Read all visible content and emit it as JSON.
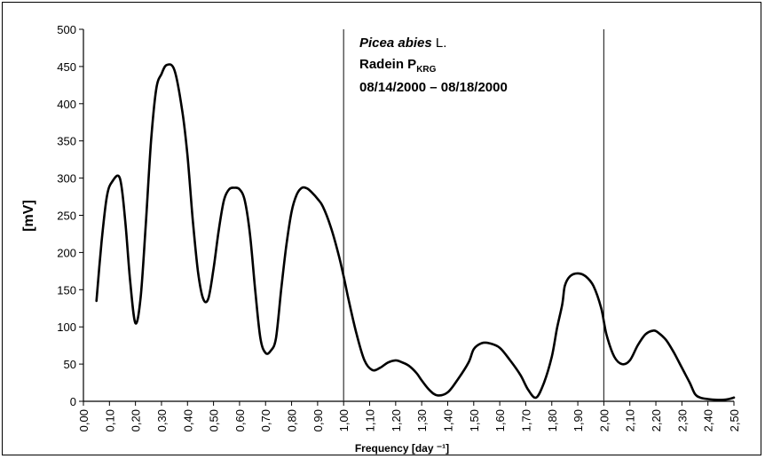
{
  "chart_data": {
    "type": "line",
    "xlabel": "Frequency [day ⁻¹]",
    "ylabel": "[mV]",
    "xlim": [
      0,
      2.5
    ],
    "ylim": [
      0,
      500
    ],
    "x_ticks": [
      0,
      0.1,
      0.2,
      0.3,
      0.4,
      0.5,
      0.6,
      0.7,
      0.8,
      0.9,
      1.0,
      1.1,
      1.2,
      1.3,
      1.4,
      1.5,
      1.6,
      1.7,
      1.8,
      1.9,
      2.0,
      2.1,
      2.2,
      2.3,
      2.4,
      2.5
    ],
    "x_tick_labels": [
      "0,00",
      "0,10",
      "0,20",
      "0,30",
      "0,40",
      "0,50",
      "0,60",
      "0,70",
      "0,80",
      "0,90",
      "1,00",
      "1,10",
      "1,20",
      "1,30",
      "1,40",
      "1,50",
      "1,60",
      "1,70",
      "1,80",
      "1,90",
      "2,00",
      "2,10",
      "2,20",
      "2,30",
      "2,40",
      "2,50"
    ],
    "y_ticks": [
      0,
      50,
      100,
      150,
      200,
      250,
      300,
      350,
      400,
      450,
      500
    ],
    "y_tick_labels": [
      "0",
      "50",
      "100",
      "150",
      "200",
      "250",
      "300",
      "350",
      "400",
      "450",
      "500"
    ],
    "vertical_lines": [
      1.0,
      2.0
    ],
    "grid": false,
    "annotation": {
      "species": "Picea abies",
      "species_suffix": " L.",
      "site": "Radein P",
      "site_sub": "KRG",
      "date_range": "08/14/2000 – 08/18/2000"
    },
    "series": [
      {
        "x": [
          0.05,
          0.07,
          0.09,
          0.11,
          0.14,
          0.16,
          0.18,
          0.2,
          0.22,
          0.24,
          0.26,
          0.28,
          0.3,
          0.32,
          0.35,
          0.38,
          0.4,
          0.42,
          0.44,
          0.46,
          0.48,
          0.5,
          0.52,
          0.54,
          0.56,
          0.58,
          0.6,
          0.62,
          0.64,
          0.66,
          0.68,
          0.7,
          0.72,
          0.74,
          0.76,
          0.78,
          0.8,
          0.82,
          0.84,
          0.86,
          0.88,
          0.9,
          0.92,
          0.95,
          0.98,
          1.0,
          1.02,
          1.05,
          1.08,
          1.11,
          1.14,
          1.17,
          1.2,
          1.22,
          1.25,
          1.28,
          1.3,
          1.33,
          1.36,
          1.4,
          1.44,
          1.48,
          1.5,
          1.53,
          1.56,
          1.6,
          1.64,
          1.68,
          1.71,
          1.74,
          1.77,
          1.8,
          1.82,
          1.84,
          1.85,
          1.87,
          1.9,
          1.93,
          1.96,
          1.99,
          2.01,
          2.04,
          2.07,
          2.1,
          2.13,
          2.16,
          2.19,
          2.21,
          2.24,
          2.27,
          2.3,
          2.33,
          2.35,
          2.37,
          2.4,
          2.43,
          2.46,
          2.48,
          2.5
        ],
        "y": [
          135,
          215,
          275,
          295,
          300,
          245,
          160,
          105,
          140,
          240,
          350,
          420,
          440,
          452,
          445,
          390,
          330,
          245,
          175,
          138,
          138,
          178,
          230,
          270,
          285,
          287,
          285,
          270,
          225,
          150,
          85,
          65,
          68,
          85,
          150,
          210,
          255,
          278,
          287,
          286,
          280,
          272,
          262,
          235,
          198,
          168,
          135,
          90,
          55,
          42,
          45,
          52,
          55,
          53,
          48,
          38,
          28,
          15,
          8,
          12,
          30,
          52,
          70,
          78,
          78,
          72,
          55,
          35,
          15,
          5,
          25,
          60,
          98,
          130,
          155,
          168,
          172,
          168,
          155,
          125,
          90,
          60,
          50,
          55,
          75,
          90,
          95,
          92,
          82,
          65,
          45,
          25,
          10,
          5,
          3,
          2,
          2,
          3,
          5
        ]
      }
    ]
  }
}
